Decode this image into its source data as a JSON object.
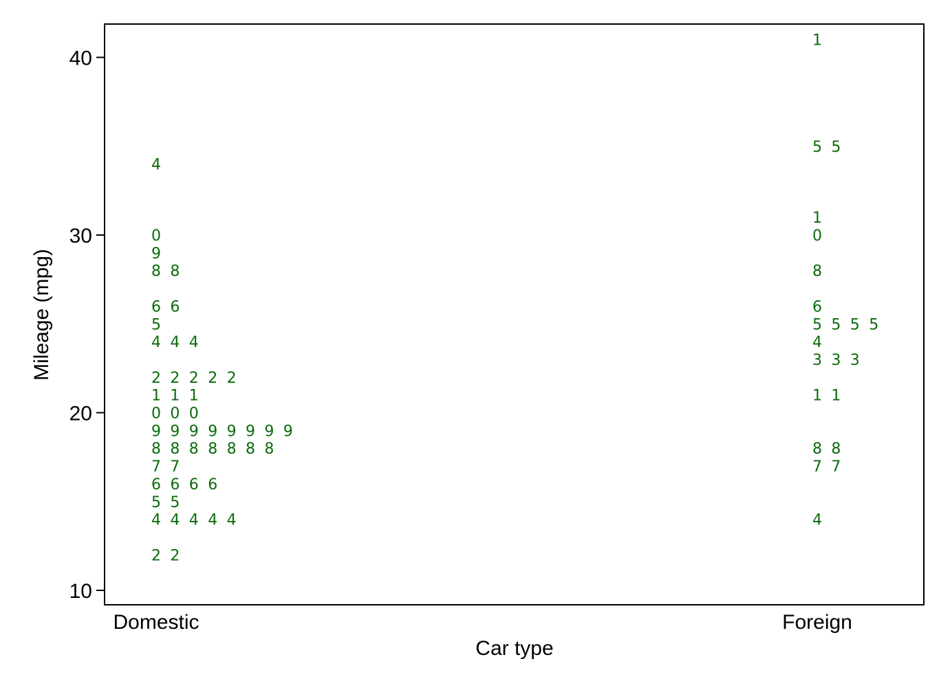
{
  "chart_data": {
    "type": "scatter",
    "title": "",
    "xlabel": "Car type",
    "ylabel": "Mileage (mpg)",
    "xlim": [
      "Domestic",
      "Foreign"
    ],
    "ylim": [
      10,
      42
    ],
    "y_ticks": [
      "10",
      "20",
      "30",
      "40"
    ],
    "categories": [
      "Domestic",
      "Foreign"
    ],
    "marker_color": "#0b6b0b",
    "grid": false,
    "legend": "none",
    "marker_style": "last digit of mpg value, stacked horizontally per value",
    "series": [
      {
        "category": "Domestic",
        "values": [
          12,
          12,
          14,
          14,
          14,
          14,
          14,
          15,
          15,
          16,
          16,
          16,
          16,
          17,
          17,
          18,
          18,
          18,
          18,
          18,
          18,
          18,
          19,
          19,
          19,
          19,
          19,
          19,
          19,
          19,
          20,
          20,
          20,
          21,
          21,
          21,
          22,
          22,
          22,
          22,
          22,
          24,
          24,
          24,
          25,
          26,
          26,
          28,
          28,
          29,
          30,
          34
        ]
      },
      {
        "category": "Foreign",
        "values": [
          14,
          17,
          17,
          18,
          18,
          21,
          21,
          23,
          23,
          23,
          24,
          25,
          25,
          25,
          25,
          26,
          28,
          30,
          31,
          35,
          35,
          41
        ]
      }
    ]
  }
}
